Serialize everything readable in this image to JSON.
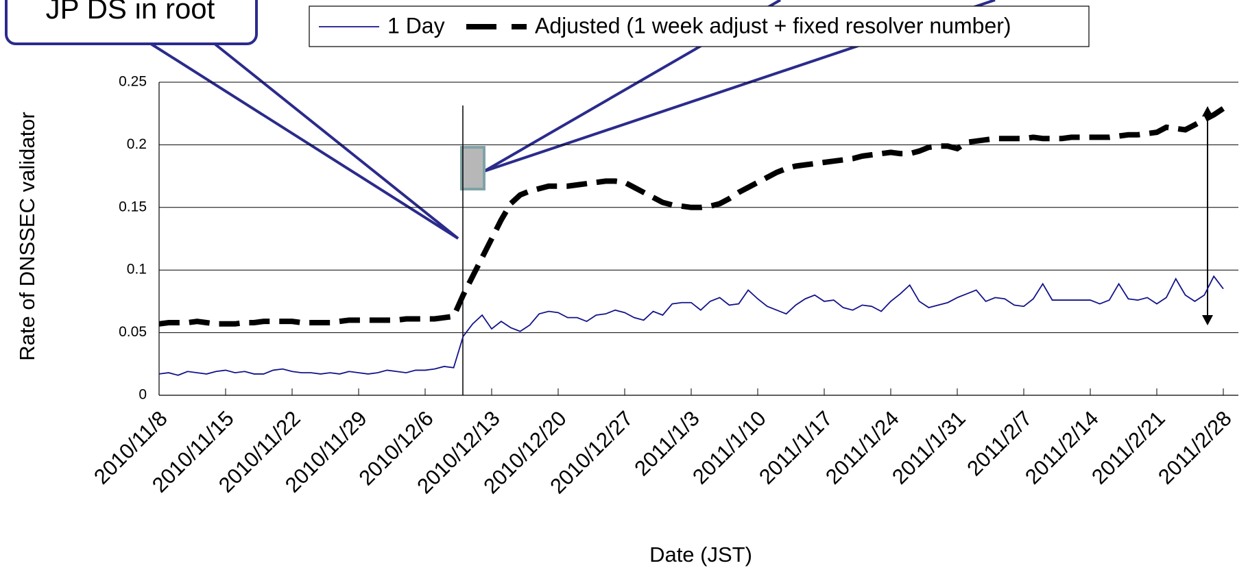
{
  "chart_data": {
    "type": "line",
    "annotation": "JP DS in root",
    "y_label": "Rate of DNSSEC validator",
    "x_label": "Date (JST)",
    "categories": [
      "2010/11/8",
      null,
      null,
      null,
      null,
      null,
      null,
      "2010/11/15",
      null,
      null,
      null,
      null,
      null,
      null,
      "2010/11/22",
      null,
      null,
      null,
      null,
      null,
      null,
      "2010/11/29",
      null,
      null,
      null,
      null,
      null,
      null,
      "2010/12/6",
      null,
      null,
      null,
      null,
      null,
      null,
      "2010/12/13",
      null,
      null,
      null,
      null,
      null,
      null,
      "2010/12/20",
      null,
      null,
      null,
      null,
      null,
      null,
      "2010/12/27",
      null,
      null,
      null,
      null,
      null,
      null,
      "2011/1/3",
      null,
      null,
      null,
      null,
      null,
      null,
      "2011/1/10",
      null,
      null,
      null,
      null,
      null,
      null,
      "2011/1/17",
      null,
      null,
      null,
      null,
      null,
      null,
      "2011/1/24",
      null,
      null,
      null,
      null,
      null,
      null,
      "2011/1/31",
      null,
      null,
      null,
      null,
      null,
      null,
      "2011/2/7",
      null,
      null,
      null,
      null,
      null,
      null,
      "2011/2/14",
      null,
      null,
      null,
      null,
      null,
      null,
      "2011/2/21",
      null,
      null,
      null,
      null,
      null,
      null,
      "2011/2/28"
    ],
    "series": [
      {
        "name": "1 Day",
        "color": "#12128a",
        "dashed": false,
        "values": [
          0.017,
          0.018,
          0.016,
          0.019,
          0.018,
          0.017,
          0.019,
          0.02,
          0.018,
          0.019,
          0.017,
          0.017,
          0.02,
          0.021,
          0.019,
          0.018,
          0.018,
          0.017,
          0.018,
          0.017,
          0.019,
          0.018,
          0.017,
          0.018,
          0.02,
          0.019,
          0.018,
          0.02,
          0.02,
          0.021,
          0.023,
          0.022,
          0.047,
          0.057,
          0.064,
          0.053,
          0.059,
          0.054,
          0.051,
          0.056,
          0.065,
          0.067,
          0.066,
          0.062,
          0.062,
          0.059,
          0.064,
          0.065,
          0.068,
          0.066,
          0.062,
          0.06,
          0.067,
          0.064,
          0.073,
          0.074,
          0.074,
          0.068,
          0.075,
          0.078,
          0.072,
          0.073,
          0.084,
          0.077,
          0.071,
          0.068,
          0.065,
          0.072,
          0.077,
          0.08,
          0.075,
          0.076,
          0.07,
          0.068,
          0.072,
          0.071,
          0.067,
          0.075,
          0.081,
          0.088,
          0.075,
          0.07,
          0.072,
          0.074,
          0.078,
          0.081,
          0.084,
          0.075,
          0.078,
          0.077,
          0.072,
          0.071,
          0.077,
          0.089,
          0.076,
          0.076,
          0.076,
          0.076,
          0.076,
          0.073,
          0.076,
          0.089,
          0.077,
          0.076,
          0.078,
          0.073,
          0.078,
          0.093,
          0.08,
          0.075,
          0.08,
          0.095,
          0.085
        ]
      },
      {
        "name": "Adjusted (1 week adjust + fixed resolver number)",
        "color": "#000000",
        "dashed": true,
        "values": [
          0.057,
          0.058,
          0.058,
          0.058,
          0.059,
          0.058,
          0.057,
          0.057,
          0.057,
          0.058,
          0.058,
          0.059,
          0.059,
          0.059,
          0.059,
          0.058,
          0.058,
          0.058,
          0.058,
          0.059,
          0.06,
          0.06,
          0.06,
          0.06,
          0.06,
          0.06,
          0.061,
          0.061,
          0.061,
          0.061,
          0.062,
          0.063,
          0.08,
          0.095,
          0.11,
          0.125,
          0.14,
          0.153,
          0.16,
          0.163,
          0.165,
          0.167,
          0.167,
          0.167,
          0.168,
          0.169,
          0.17,
          0.171,
          0.171,
          0.17,
          0.166,
          0.162,
          0.158,
          0.154,
          0.152,
          0.151,
          0.15,
          0.15,
          0.151,
          0.153,
          0.157,
          0.162,
          0.166,
          0.17,
          0.174,
          0.178,
          0.181,
          0.183,
          0.184,
          0.185,
          0.186,
          0.187,
          0.188,
          0.189,
          0.191,
          0.192,
          0.193,
          0.194,
          0.193,
          0.193,
          0.195,
          0.198,
          0.199,
          0.199,
          0.197,
          0.202,
          0.203,
          0.204,
          0.205,
          0.205,
          0.205,
          0.205,
          0.206,
          0.205,
          0.205,
          0.205,
          0.206,
          0.206,
          0.206,
          0.206,
          0.206,
          0.207,
          0.208,
          0.208,
          0.209,
          0.21,
          0.214,
          0.213,
          0.212,
          0.216,
          0.22,
          0.224,
          0.229
        ]
      }
    ],
    "ylim": [
      0,
      0.25
    ],
    "yticks": [
      0,
      0.05,
      0.1,
      0.15,
      0.2,
      0.25
    ],
    "grid": true
  }
}
